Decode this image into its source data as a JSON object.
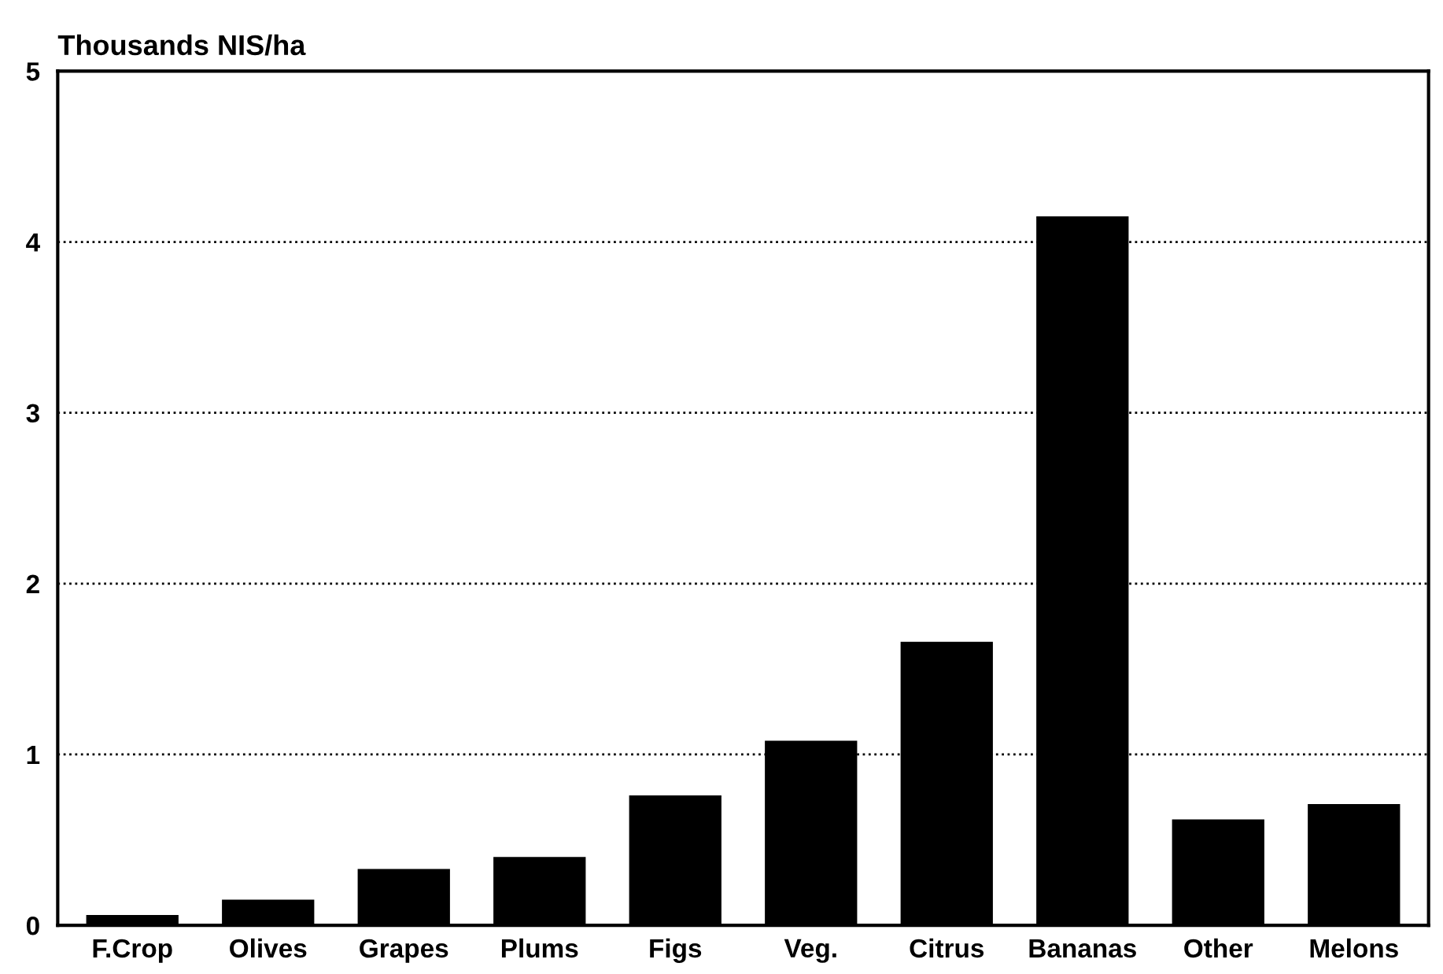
{
  "chart_data": {
    "type": "bar",
    "ylabel": "Thousands NIS/ha",
    "categories": [
      "F.Crop",
      "Olives",
      "Grapes",
      "Plums",
      "Figs",
      "Veg.",
      "Citrus",
      "Bananas",
      "Other",
      "Melons"
    ],
    "values": [
      0.06,
      0.15,
      0.33,
      0.4,
      0.76,
      1.08,
      1.66,
      4.15,
      0.62,
      0.71
    ],
    "color": "#000000",
    "ylim": [
      0,
      5
    ],
    "yticks": [
      0,
      1,
      2,
      3,
      4,
      5
    ],
    "grid": "y",
    "line_style": "dotted"
  }
}
